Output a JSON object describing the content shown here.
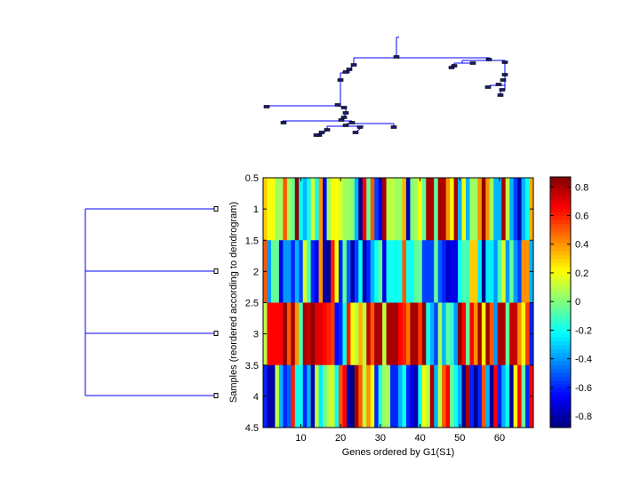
{
  "chart_data": {
    "type": "heatmap",
    "title": "",
    "xlabel": "Genes ordered by G1(S1)",
    "ylabel": "Samples (reordered according to dendrogram)",
    "xlim": [
      0.5,
      68.5
    ],
    "ylim": [
      0.5,
      4.5
    ],
    "xticks": [
      10,
      20,
      30,
      40,
      50,
      60
    ],
    "yticks": [
      "0.5",
      "1",
      "1.5",
      "2",
      "2.5",
      "3",
      "3.5",
      "4",
      "4.5"
    ],
    "colormap": "jet",
    "clim": [
      -0.88,
      0.87
    ],
    "colorbar_ticks": [
      "0.8",
      "0.6",
      "0.4",
      "0.2",
      "0",
      "-0.2",
      "-0.4",
      "-0.6",
      "-0.8"
    ],
    "rows": [
      1,
      2,
      3,
      4
    ],
    "values": [
      [
        0.3,
        0.2,
        0.2,
        0.05,
        0.05,
        0.5,
        0.05,
        -0.05,
        0.85,
        -0.2,
        -0.35,
        -0.2,
        0.15,
        -0.2,
        0.4,
        -0.7,
        0.05,
        0.2,
        0.2,
        0.15,
        0.05,
        0.05,
        0,
        -0.35,
        -0.85,
        0.65,
        -0.05,
        0.5,
        -0.55,
        -0.7,
        0.8,
        0.1,
        0.1,
        0.05,
        0.05,
        0.35,
        -0.8,
        0,
        0.05,
        0.2,
        -0.05,
        0.8,
        0.8,
        -0.05,
        0.8,
        0.8,
        0.4,
        0.2,
        0.8,
        -0.35,
        0.2,
        -0.35,
        0.05,
        0.05,
        0.4,
        0.85,
        0.4,
        0.05,
        -0.35,
        -0.35,
        0.8,
        0.1,
        -0.35,
        -0.55,
        -0.8,
        -0.35,
        -0.2,
        0.35
      ],
      [
        0.5,
        -0.4,
        -0.05,
        -0.05,
        -0.7,
        -0.4,
        -0.4,
        -0.6,
        -0.35,
        -0.55,
        0.15,
        -0.1,
        -0.6,
        -0.7,
        0.4,
        -0.8,
        -0.85,
        0.6,
        0.2,
        -0.6,
        -0.05,
        -0.5,
        -0.8,
        -0.55,
        -0.2,
        -0.8,
        -0.6,
        -0.35,
        -0.2,
        -0.05,
        -0.7,
        -0.2,
        -0.2,
        -0.2,
        -0.2,
        0.5,
        -0.2,
        -0.2,
        -0.05,
        -0.05,
        -0.55,
        -0.55,
        -0.55,
        -0.05,
        -0.5,
        -0.6,
        -0.75,
        -0.7,
        -0.7,
        -0.2,
        -0.1,
        -0.1,
        0.3,
        0.3,
        -0.25,
        -0.85,
        -0.25,
        -0.25,
        -0.4,
        -0.1,
        0.15,
        -0.4,
        -0.05,
        -0.4,
        -0.55,
        0.4,
        0.4,
        -0.35
      ],
      [
        0.1,
        0.65,
        0.65,
        0.65,
        0.65,
        0.85,
        0.5,
        0.8,
        0.4,
        -0.1,
        0.8,
        0.75,
        0.85,
        0.7,
        0.7,
        0.65,
        0.6,
        0.55,
        -0.65,
        -0.6,
        -0.2,
        0.6,
        0.2,
        0.1,
        0.35,
        0.1,
        0.75,
        0.5,
        0.8,
        0.8,
        0.1,
        0.8,
        0.8,
        0.8,
        0.65,
        0.6,
        0.45,
        0.8,
        0.8,
        0.55,
        0.85,
        -0.2,
        -0.35,
        -0.55,
        0.05,
        -0.35,
        -0.05,
        -0.15,
        -0.4,
        0.85,
        0.65,
        -0.05,
        0.65,
        0.4,
        0.8,
        0.2,
        0.8,
        0.5,
        -0.4,
        0.8,
        0.8,
        -0.05,
        0.75,
        0.75,
        0.4,
        0.2,
        0.55,
        -0.6
      ],
      [
        -0.6,
        -0.8,
        -0.8,
        0.1,
        -0.35,
        -0.6,
        -0.5,
        0.6,
        -0.2,
        -0.2,
        -0.6,
        -0.35,
        -0.8,
        0.1,
        -0.25,
        -0.05,
        0.1,
        0.15,
        -0.2,
        0.5,
        0.65,
        -0.8,
        -0.9,
        0.8,
        0.5,
        0.1,
        0.4,
        0.2,
        -0.6,
        -0.15,
        0.05,
        0.05,
        -0.6,
        -0.6,
        -0.35,
        -0.2,
        -0.6,
        -0.7,
        -0.8,
        -0.2,
        0.2,
        0.1,
        0.8,
        -0.35,
        0.1,
        0.5,
        0.65,
        -0.05,
        -0.2,
        -0.35,
        -0.85,
        0.8,
        -0.6,
        -0.85,
        -0.6,
        0.5,
        -0.35,
        -0.85,
        0.65,
        -0.6,
        -0.35,
        -0.2,
        -0.85,
        0.2,
        0.65,
        -0.05,
        -0.6,
        0.65
      ]
    ],
    "grid": false,
    "dendrograms": [
      "top (genes)",
      "left (samples)"
    ]
  },
  "colors": {
    "dendrogram_line": "#0000ff",
    "leaf_marker": "#000000",
    "axis": "#000000"
  }
}
